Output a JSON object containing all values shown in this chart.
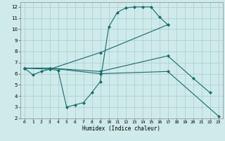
{
  "xlabel": "Humidex (Indice chaleur)",
  "bg_color": "#ceeaea",
  "grid_color": "#aacccc",
  "line_color": "#1a6b6b",
  "xlim": [
    -0.5,
    23.5
  ],
  "ylim": [
    2,
    12.4
  ],
  "xticks": [
    0,
    1,
    2,
    3,
    4,
    5,
    6,
    7,
    8,
    9,
    10,
    11,
    12,
    13,
    14,
    15,
    16,
    17,
    18,
    19,
    20,
    21,
    22,
    23
  ],
  "yticks": [
    2,
    3,
    4,
    5,
    6,
    7,
    8,
    9,
    10,
    11,
    12
  ],
  "series1_x": [
    0,
    1,
    2,
    3,
    4,
    5,
    6,
    7,
    8,
    9,
    10,
    11,
    12,
    13,
    14,
    15,
    16,
    17
  ],
  "series1_y": [
    6.5,
    5.9,
    6.2,
    6.4,
    6.3,
    3.0,
    3.2,
    3.4,
    4.3,
    5.3,
    10.2,
    11.5,
    11.9,
    12.0,
    12.0,
    12.0,
    11.1,
    10.4
  ],
  "series2_x": [
    0,
    3,
    9,
    17
  ],
  "series2_y": [
    6.5,
    6.4,
    7.9,
    10.4
  ],
  "series3_x": [
    0,
    3,
    9,
    17,
    20,
    22
  ],
  "series3_y": [
    6.5,
    6.5,
    6.2,
    7.6,
    5.6,
    4.3
  ],
  "series4_x": [
    0,
    3,
    9,
    17,
    23
  ],
  "series4_y": [
    6.5,
    6.5,
    6.0,
    6.2,
    2.2
  ]
}
